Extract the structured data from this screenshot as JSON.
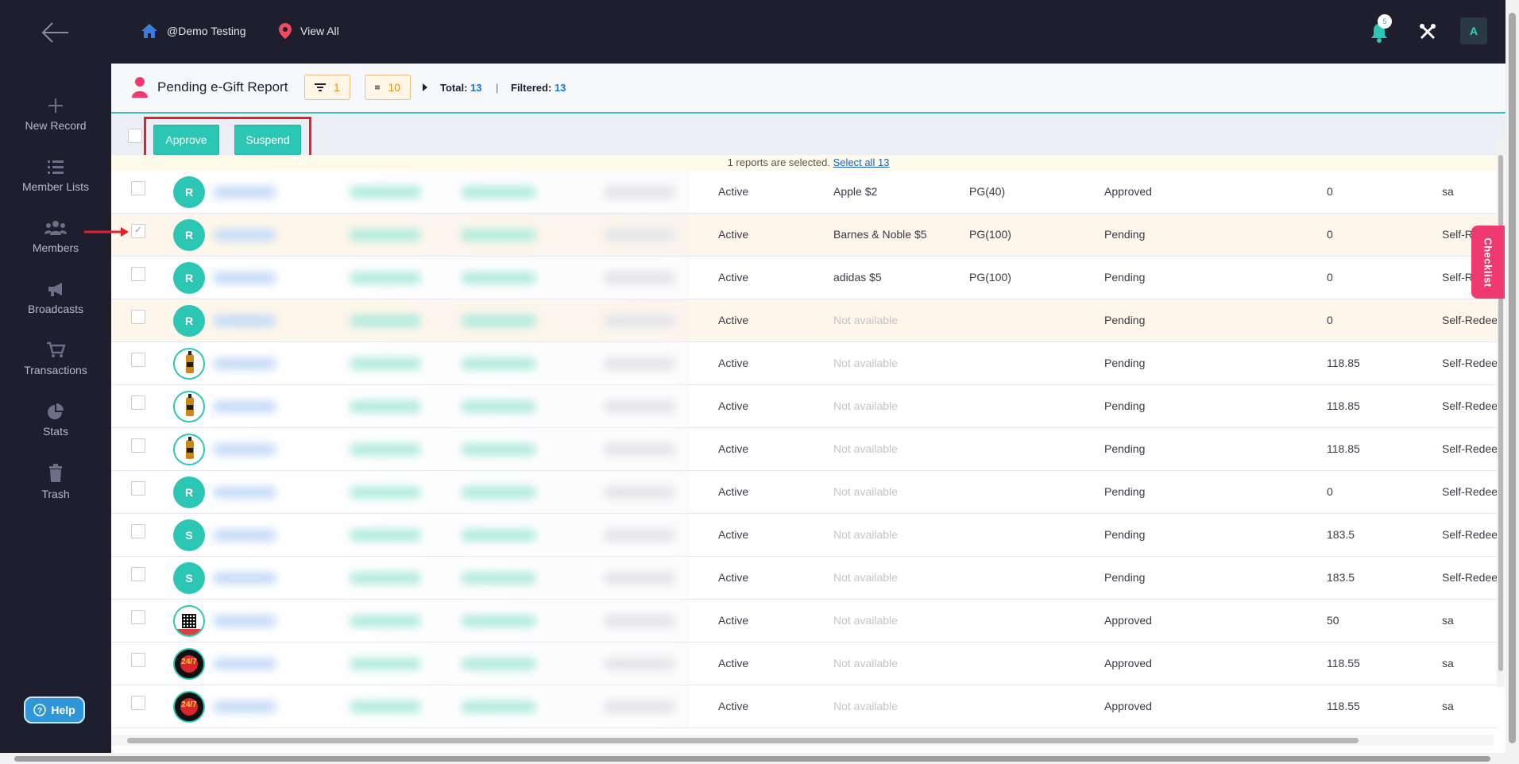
{
  "header": {
    "home_label": "@Demo Testing",
    "view_label": "View All",
    "notification_count": "5",
    "user_initial": "A"
  },
  "sidebar": {
    "items": [
      {
        "label": "New Record",
        "icon": "plus-icon"
      },
      {
        "label": "Member Lists",
        "icon": "list-icon"
      },
      {
        "label": "Members",
        "icon": "members-icon"
      },
      {
        "label": "Broadcasts",
        "icon": "megaphone-icon"
      },
      {
        "label": "Transactions",
        "icon": "cart-icon"
      },
      {
        "label": "Stats",
        "icon": "pie-chart-icon"
      },
      {
        "label": "Trash",
        "icon": "trash-icon"
      }
    ],
    "help_label": "Help"
  },
  "report": {
    "title": "Pending e-Gift Report",
    "filter_count": "1",
    "list_count": "10",
    "total_label": "Total:",
    "total_value": "13",
    "separator": "|",
    "filtered_label": "Filtered:",
    "filtered_value": "13"
  },
  "actions": {
    "approve_label": "Approve",
    "suspend_label": "Suspend"
  },
  "selection": {
    "notice": "1 reports are selected.",
    "select_all": "Select all 13"
  },
  "checklist_label": "Checklist",
  "rows": [
    {
      "avatar": "R",
      "avatar_type": "letter",
      "status": "Active",
      "gift": "Apple $2",
      "pg": "PG(40)",
      "approval": "Approved",
      "amount": "0",
      "type": "sa",
      "checked": false,
      "highlight": false
    },
    {
      "avatar": "R",
      "avatar_type": "letter",
      "status": "Active",
      "gift": "Barnes & Noble $5",
      "pg": "PG(100)",
      "approval": "Pending",
      "amount": "0",
      "type": "Self-R",
      "checked": true,
      "highlight": true
    },
    {
      "avatar": "R",
      "avatar_type": "letter",
      "status": "Active",
      "gift": "adidas $5",
      "pg": "PG(100)",
      "approval": "Pending",
      "amount": "0",
      "type": "Self-R",
      "checked": false,
      "highlight": false
    },
    {
      "avatar": "R",
      "avatar_type": "letter",
      "status": "Active",
      "gift": "Not available",
      "pg": "",
      "approval": "Pending",
      "amount": "0",
      "type": "Self-Redee",
      "checked": false,
      "highlight": true
    },
    {
      "avatar": "",
      "avatar_type": "bottle",
      "status": "Active",
      "gift": "Not available",
      "pg": "",
      "approval": "Pending",
      "amount": "118.85",
      "type": "Self-Redee",
      "checked": false,
      "highlight": false
    },
    {
      "avatar": "",
      "avatar_type": "bottle",
      "status": "Active",
      "gift": "Not available",
      "pg": "",
      "approval": "Pending",
      "amount": "118.85",
      "type": "Self-Redee",
      "checked": false,
      "highlight": false
    },
    {
      "avatar": "",
      "avatar_type": "bottle",
      "status": "Active",
      "gift": "Not available",
      "pg": "",
      "approval": "Pending",
      "amount": "118.85",
      "type": "Self-Redee",
      "checked": false,
      "highlight": false
    },
    {
      "avatar": "R",
      "avatar_type": "letter",
      "status": "Active",
      "gift": "Not available",
      "pg": "",
      "approval": "Pending",
      "amount": "0",
      "type": "Self-Redee",
      "checked": false,
      "highlight": false
    },
    {
      "avatar": "S",
      "avatar_type": "letter",
      "status": "Active",
      "gift": "Not available",
      "pg": "",
      "approval": "Pending",
      "amount": "183.5",
      "type": "Self-Redee",
      "checked": false,
      "highlight": false
    },
    {
      "avatar": "S",
      "avatar_type": "letter",
      "status": "Active",
      "gift": "Not available",
      "pg": "",
      "approval": "Pending",
      "amount": "183.5",
      "type": "Self-Redee",
      "checked": false,
      "highlight": false
    },
    {
      "avatar": "",
      "avatar_type": "qr",
      "status": "Active",
      "gift": "Not available",
      "pg": "",
      "approval": "Approved",
      "amount": "50",
      "type": "sa",
      "checked": false,
      "highlight": false
    },
    {
      "avatar": "24/7",
      "avatar_type": "badge",
      "status": "Active",
      "gift": "Not available",
      "pg": "",
      "approval": "Approved",
      "amount": "118.55",
      "type": "sa",
      "checked": false,
      "highlight": false
    },
    {
      "avatar": "24/7",
      "avatar_type": "badge",
      "status": "Active",
      "gift": "Not available",
      "pg": "",
      "approval": "Approved",
      "amount": "118.55",
      "type": "sa",
      "checked": false,
      "highlight": false
    }
  ],
  "colors": {
    "nav_bg": "#1f1e2e",
    "accent": "#2cc6b4",
    "highlight_red": "#e1222b",
    "checklist_pink": "#ef3a6f"
  }
}
